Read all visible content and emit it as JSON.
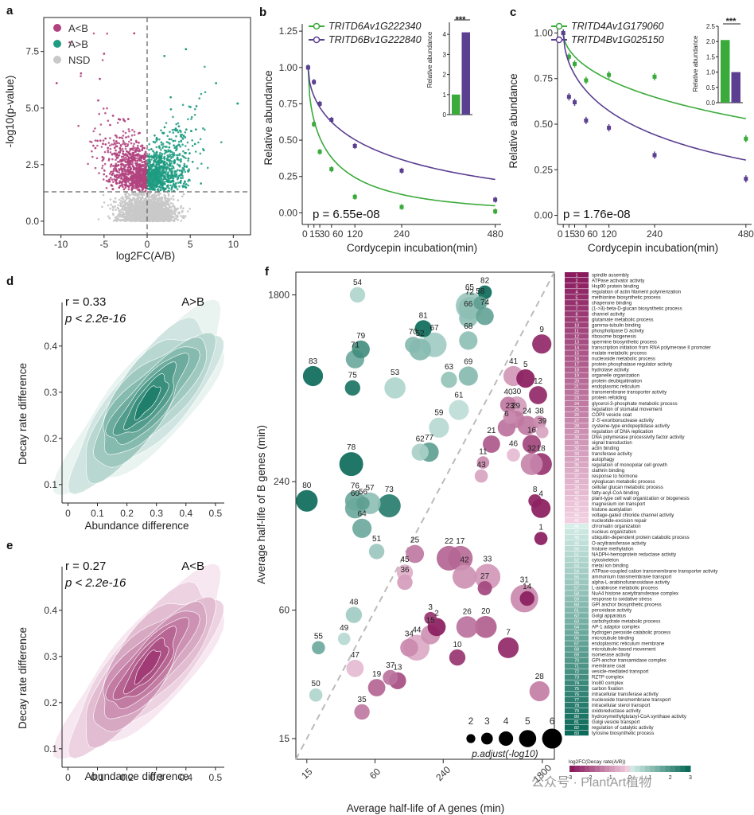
{
  "panels": {
    "a": "a",
    "b": "b",
    "c": "c",
    "d": "d",
    "e": "e",
    "f": "f"
  },
  "colors": {
    "magenta": "#b2437f",
    "teal": "#1f9c82",
    "grey": "#c9c9c9",
    "green": "#3aaa3a",
    "purple": "#5b3f91"
  },
  "watermark": "公众号 · PlantArt植物",
  "chart_data": [
    {
      "panel": "a",
      "type": "scatter",
      "xlabel": "log2FC(A/B)",
      "ylabel": "-log10(p-value)",
      "xlim": [
        -12,
        12
      ],
      "ylim": [
        -0.6,
        9
      ],
      "xticks": [
        "-10",
        "-5",
        "0",
        "5",
        "10"
      ],
      "yticks": [
        "0.0",
        "2.5",
        "5.0",
        "7.5"
      ],
      "legend": [
        "A<B",
        "A>B",
        "NSD"
      ],
      "threshold_y": 1.3,
      "threshold_x": 0
    },
    {
      "panel": "b",
      "type": "line",
      "xlabel": "Cordycepin incubation(min)",
      "ylabel": "Relative abundance",
      "xticks": [
        "0",
        "15",
        "30",
        "60",
        "120",
        "240",
        "480"
      ],
      "yticks": [
        "0.00",
        "0.25",
        "0.50",
        "0.75",
        "1.00",
        "1.25"
      ],
      "p_value": "p = 6.55e-08",
      "series": [
        {
          "name": "TRITD6Av1G222340",
          "x": [
            0,
            15,
            30,
            60,
            120,
            240,
            480
          ],
          "y": [
            1.0,
            0.61,
            0.42,
            0.3,
            0.11,
            0.04,
            0.01
          ]
        },
        {
          "name": "TRITD6Bv1G222840",
          "x": [
            0,
            15,
            30,
            60,
            120,
            240,
            480
          ],
          "y": [
            1.0,
            0.9,
            0.75,
            0.64,
            0.46,
            0.29,
            0.09
          ]
        }
      ],
      "inset": {
        "ylabel": "Relative abundance",
        "values": [
          1.0,
          4.1
        ],
        "yticks": [
          "0",
          "1",
          "2",
          "3",
          "4"
        ],
        "sig": "***"
      }
    },
    {
      "panel": "c",
      "type": "line",
      "xlabel": "Cordycepin incubation(min)",
      "ylabel": "Relative abundance",
      "xticks": [
        "0",
        "15",
        "30",
        "60",
        "120",
        "240",
        "480"
      ],
      "yticks": [
        "0.00",
        "0.25",
        "0.50",
        "0.75",
        "1.00"
      ],
      "p_value": "p = 1.76e-08",
      "series": [
        {
          "name": "TRITD4Av1G179060",
          "x": [
            0,
            15,
            30,
            60,
            120,
            240,
            480
          ],
          "y": [
            1.0,
            0.87,
            0.83,
            0.74,
            0.77,
            0.76,
            0.42
          ]
        },
        {
          "name": "TRITD4Bv1G025150",
          "x": [
            0,
            15,
            30,
            60,
            120,
            240,
            480
          ],
          "y": [
            1.0,
            0.65,
            0.62,
            0.52,
            0.48,
            0.33,
            0.2
          ]
        }
      ],
      "inset": {
        "ylabel": "Relative abundance",
        "values": [
          2.05,
          1.0
        ],
        "yticks": [
          "0.0",
          "0.5",
          "1.0",
          "1.5",
          "2.0",
          "2.5"
        ],
        "sig": "***"
      }
    },
    {
      "panel": "d",
      "type": "heatmap",
      "title": "A>B",
      "stat_r": "r = 0.33",
      "stat_p": "p < 2.2e-16",
      "xlabel": "Abundance difference",
      "ylabel": "Decay rate difference",
      "xticks": [
        "0",
        "0.1",
        "0.2",
        "0.3",
        "0.4",
        "0.5"
      ],
      "yticks": [
        "0.1",
        "0.2",
        "0.3",
        "0.4"
      ],
      "peak": [
        0.27,
        0.28
      ]
    },
    {
      "panel": "e",
      "type": "heatmap",
      "title": "A<B",
      "stat_r": "r = 0.27",
      "stat_p": "p < 2.2e-16",
      "xlabel": "Abundance difference",
      "ylabel": "Decay rate difference",
      "xticks": [
        "0",
        "0.1",
        "0.2",
        "0.3",
        "0.4",
        "0.5"
      ],
      "yticks": [
        "0.1",
        "0.2",
        "0.3",
        "0.4"
      ],
      "peak": [
        0.27,
        0.28
      ]
    },
    {
      "panel": "f",
      "type": "scatter",
      "xlabel": "Average half-life of A genes (min)",
      "ylabel": "Average half-life of B genes (min)",
      "xticks": [
        "15",
        "60",
        "240",
        "1800"
      ],
      "yticks": [
        "15",
        "60",
        "240",
        "1800"
      ],
      "size_legend_title": "p.adjust(-log10)",
      "size_legend": [
        "2",
        "3",
        "4",
        "5",
        "6"
      ],
      "colorbar_title": "log2FC(Decay rate(A/B))",
      "colorbar_ticks": [
        "-3",
        "-2",
        "-1",
        "0",
        "1",
        "2",
        "3"
      ],
      "terms": [
        "spindle assembly",
        "ATPase activator activity",
        "Hsp90 protein binding",
        "regulation of actin filament polymerization",
        "methionine biosynthetic process",
        "chaperone binding",
        "(1->3)-beta-D-glucan biosynthetic process",
        "channel activity",
        "glutamate metabolic process",
        "gamma-tubulin binding",
        "phospholipase D activity",
        "ribosome biogenesis",
        "spermine biosynthetic process",
        "transcription initiation from RNA polymerase II promoter",
        "malate metabolic process",
        "nucleoside metabolic process",
        "protein phosphatase regulator activity",
        "hydrolase activity",
        "organelle organization",
        "protein deubiquitination",
        "endoplasmic reticulum",
        "transmembrane transporter activity",
        "protein refolding",
        "glycerol-3-phosphate metabolic process",
        "regulation of stomatal movement",
        "COPII vesicle coat",
        "3'-5'-exoribonuclease activity",
        "cysteine-type endopeptidase activity",
        "regulation of DNA replication",
        "DNA polymerase processivity factor activity",
        "signal transduction",
        "actin binding",
        "transferase activity",
        "autophagy",
        "regulation of monopolar cell growth",
        "clathrin binding",
        "response to hormone",
        "xyloglucan metabolic process",
        "cellular glucan metabolic process",
        "fatty-acyl-CoA binding",
        "plant-type cell wall organization or biogenesis",
        "magnesium ion transport",
        "histone acetylation",
        "voltage-gated chloride channel activity",
        "nucleotide-excision repair",
        "chromatin organization",
        "nucleus organization",
        "ubiquitin-dependent protein catabolic process",
        "O-acyltransferase activity",
        "histone methylation",
        "NADPH-hemoprotein reductase activity",
        "cytoskeleton",
        "metal ion binding",
        "ATPase-coupled cation transmembrane transporter activity",
        "ammonium transmembrane transport",
        "alpha-L-arabinofuranosidase activity",
        "L-arabinose metabolic process",
        "NuA4 histone acetyltransferase complex",
        "response to oxidative stress",
        "GPI anchor biosynthetic process",
        "peroxidase activity",
        "Golgi apparatus",
        "carbohydrate metabolic process",
        "AP-1 adaptor complex",
        "hydrogen peroxide catabolic process",
        "microtubule binding",
        "endoplasmic reticulum membrane",
        "microtubule-based movement",
        "isomerase activity",
        "GPI-anchor transamidase complex",
        "membrane coat",
        "vesicle-mediated transport",
        "RZTP complex",
        "Ino80 complex",
        "carbon fixation",
        "intracellular transferase activity",
        "nucleoside transmembrane transport",
        "intracellular sterol transport",
        "oxidoreductase activity",
        "hydroxymethylglutaryl-CoA synthase activity",
        "Golgi vesicle transport",
        "regulation of catalytic activity",
        "tyrosine biosynthetic process"
      ],
      "points": [
        {
          "id": 1,
          "x": 1750,
          "y": 130,
          "s": 2.2,
          "c": -3.0
        },
        {
          "id": 2,
          "x": 210,
          "y": 50,
          "s": 3.5,
          "c": -3.0
        },
        {
          "id": 3,
          "x": 185,
          "y": 55,
          "s": 2.0,
          "c": -2.6
        },
        {
          "id": 4,
          "x": 1750,
          "y": 180,
          "s": 3.8,
          "c": -3.0
        },
        {
          "id": 5,
          "x": 1280,
          "y": 730,
          "s": 3.6,
          "c": -3.0
        },
        {
          "id": 6,
          "x": 870,
          "y": 430,
          "s": 3.4,
          "c": -1.6
        },
        {
          "id": 7,
          "x": 900,
          "y": 40,
          "s": 4.2,
          "c": -2.8
        },
        {
          "id": 8,
          "x": 1550,
          "y": 195,
          "s": 2.2,
          "c": -2.9
        },
        {
          "id": 9,
          "x": 1780,
          "y": 1060,
          "s": 3.8,
          "c": -2.8
        },
        {
          "id": 10,
          "x": 320,
          "y": 36,
          "s": 3.0,
          "c": -2.6
        },
        {
          "id": 11,
          "x": 540,
          "y": 295,
          "s": 2.0,
          "c": -1.2
        },
        {
          "id": 12,
          "x": 1650,
          "y": 610,
          "s": 3.5,
          "c": -2.8
        },
        {
          "id": 13,
          "x": 95,
          "y": 28,
          "s": 3.2,
          "c": -2.2
        },
        {
          "id": 14,
          "x": 1320,
          "y": 68,
          "s": 2.6,
          "c": -3.0
        },
        {
          "id": 15,
          "x": 185,
          "y": 46,
          "s": 3.8,
          "c": -1.1
        },
        {
          "id": 16,
          "x": 1450,
          "y": 360,
          "s": 3.6,
          "c": -2.3
        },
        {
          "id": 17,
          "x": 340,
          "y": 105,
          "s": 5.2,
          "c": -1.7
        },
        {
          "id": 18,
          "x": 1750,
          "y": 290,
          "s": 4.5,
          "c": -2.6
        },
        {
          "id": 19,
          "x": 62,
          "y": 26,
          "s": 3.3,
          "c": -1.8
        },
        {
          "id": 20,
          "x": 570,
          "y": 50,
          "s": 4.5,
          "c": -1.9
        },
        {
          "id": 21,
          "x": 640,
          "y": 360,
          "s": 3.3,
          "c": -2.0
        },
        {
          "id": 22,
          "x": 270,
          "y": 105,
          "s": 5.2,
          "c": -1.8
        },
        {
          "id": 23,
          "x": 930,
          "y": 480,
          "s": 2.2,
          "c": -1.2
        },
        {
          "id": 24,
          "x": 1320,
          "y": 440,
          "s": 3.8,
          "c": -1.5
        },
        {
          "id": 25,
          "x": 135,
          "y": 110,
          "s": 3.5,
          "c": -1.5
        },
        {
          "id": 26,
          "x": 390,
          "y": 50,
          "s": 4.4,
          "c": -1.6
        },
        {
          "id": 27,
          "x": 560,
          "y": 76,
          "s": 2.5,
          "c": -2.3
        },
        {
          "id": 28,
          "x": 1700,
          "y": 25,
          "s": 4.0,
          "c": -1.4
        },
        {
          "id": 29,
          "x": 1050,
          "y": 470,
          "s": 3.3,
          "c": -1.5
        },
        {
          "id": 30,
          "x": 1070,
          "y": 540,
          "s": 4.0,
          "c": -0.9
        },
        {
          "id": 31,
          "x": 1250,
          "y": 68,
          "s": 6.0,
          "c": -1.2
        },
        {
          "id": 32,
          "x": 1450,
          "y": 290,
          "s": 4.5,
          "c": -1.3
        },
        {
          "id": 33,
          "x": 590,
          "y": 86,
          "s": 5.5,
          "c": -1.0
        },
        {
          "id": 34,
          "x": 120,
          "y": 40,
          "s": 3.4,
          "c": -1.2
        },
        {
          "id": 35,
          "x": 46,
          "y": 20,
          "s": 2.8,
          "c": -1.5
        },
        {
          "id": 36,
          "x": 110,
          "y": 81,
          "s": 2.8,
          "c": -0.9
        },
        {
          "id": 37,
          "x": 82,
          "y": 29,
          "s": 2.7,
          "c": -1.6
        },
        {
          "id": 38,
          "x": 1700,
          "y": 455,
          "s": 2.2,
          "c": -1.2
        },
        {
          "id": 39,
          "x": 1800,
          "y": 410,
          "s": 2.0,
          "c": -0.8
        },
        {
          "id": 40,
          "x": 900,
          "y": 550,
          "s": 3.0,
          "c": -1.5
        },
        {
          "id": 41,
          "x": 1000,
          "y": 750,
          "s": 4.0,
          "c": -1.0
        },
        {
          "id": 42,
          "x": 370,
          "y": 86,
          "s": 5.0,
          "c": -1.1
        },
        {
          "id": 43,
          "x": 520,
          "y": 255,
          "s": 2.2,
          "c": -0.8
        },
        {
          "id": 44,
          "x": 140,
          "y": 40,
          "s": 5.5,
          "c": -0.7
        },
        {
          "id": 45,
          "x": 110,
          "y": 90,
          "s": 3.0,
          "c": -0.6
        },
        {
          "id": 46,
          "x": 1000,
          "y": 320,
          "s": 2.2,
          "c": -0.4
        },
        {
          "id": 47,
          "x": 40,
          "y": 32,
          "s": 3.3,
          "c": -0.4
        },
        {
          "id": 48,
          "x": 39,
          "y": 57,
          "s": 3.0,
          "c": 0.8
        },
        {
          "id": 49,
          "x": 32,
          "y": 44,
          "s": 2.0,
          "c": 0.5
        },
        {
          "id": 50,
          "x": 18,
          "y": 24,
          "s": 2.2,
          "c": 0.6
        },
        {
          "id": 51,
          "x": 62,
          "y": 113,
          "s": 2.8,
          "c": 0.9
        },
        {
          "id": 52,
          "x": 150,
          "y": 1000,
          "s": 4.5,
          "c": 1.2
        },
        {
          "id": 53,
          "x": 90,
          "y": 660,
          "s": 4.3,
          "c": 0.6
        },
        {
          "id": 54,
          "x": 42,
          "y": 1800,
          "s": 2.8,
          "c": 0.6
        },
        {
          "id": 55,
          "x": 19,
          "y": 40,
          "s": 2.2,
          "c": 1.6
        },
        {
          "id": 56,
          "x": 47,
          "y": 190,
          "s": 2.2,
          "c": 1.8
        },
        {
          "id": 57,
          "x": 54,
          "y": 190,
          "s": 4.4,
          "c": 1.1
        },
        {
          "id": 58,
          "x": 510,
          "y": 1650,
          "s": 2.3,
          "c": 1.8
        },
        {
          "id": 59,
          "x": 220,
          "y": 430,
          "s": 4.0,
          "c": 0.5
        },
        {
          "id": 60,
          "x": 40,
          "y": 180,
          "s": 4.0,
          "c": 1.6
        },
        {
          "id": 61,
          "x": 330,
          "y": 520,
          "s": 4.0,
          "c": 0.4
        },
        {
          "id": 62,
          "x": 150,
          "y": 330,
          "s": 3.2,
          "c": 0.7
        },
        {
          "id": 63,
          "x": 270,
          "y": 720,
          "s": 3.0,
          "c": 1.0
        },
        {
          "id": 64,
          "x": 46,
          "y": 145,
          "s": 3.8,
          "c": 1.6
        },
        {
          "id": 65,
          "x": 410,
          "y": 1600,
          "s": 6.0,
          "c": 0.9
        },
        {
          "id": 66,
          "x": 400,
          "y": 1400,
          "s": 3.6,
          "c": 1.1
        },
        {
          "id": 67,
          "x": 200,
          "y": 1050,
          "s": 5.2,
          "c": 0.8
        },
        {
          "id": 68,
          "x": 400,
          "y": 1100,
          "s": 3.6,
          "c": 1.1
        },
        {
          "id": 69,
          "x": 400,
          "y": 750,
          "s": 3.8,
          "c": 1.2
        },
        {
          "id": 70,
          "x": 130,
          "y": 1050,
          "s": 3.0,
          "c": 1.2
        },
        {
          "id": 71,
          "x": 40,
          "y": 900,
          "s": 3.6,
          "c": 1.6
        },
        {
          "id": 72,
          "x": 410,
          "y": 1560,
          "s": 4.6,
          "c": 1.1
        },
        {
          "id": 73,
          "x": 80,
          "y": 185,
          "s": 4.8,
          "c": 2.6
        },
        {
          "id": 74,
          "x": 560,
          "y": 1430,
          "s": 3.4,
          "c": 1.7
        },
        {
          "id": 75,
          "x": 38,
          "y": 660,
          "s": 2.8,
          "c": 2.8
        },
        {
          "id": 76,
          "x": 40,
          "y": 195,
          "s": 4.0,
          "c": 1.6
        },
        {
          "id": 77,
          "x": 180,
          "y": 330,
          "s": 3.8,
          "c": 1.8
        },
        {
          "id": 78,
          "x": 37,
          "y": 290,
          "s": 5.0,
          "c": 3.0
        },
        {
          "id": 79,
          "x": 45,
          "y": 1000,
          "s": 3.4,
          "c": 2.2
        },
        {
          "id": 80,
          "x": 15,
          "y": 195,
          "s": 4.4,
          "c": 3.0
        },
        {
          "id": 81,
          "x": 160,
          "y": 1250,
          "s": 3.2,
          "c": 3.0
        },
        {
          "id": 82,
          "x": 560,
          "y": 1850,
          "s": 2.4,
          "c": 3.0
        },
        {
          "id": 83,
          "x": 17,
          "y": 750,
          "s": 4.0,
          "c": 3.0
        }
      ]
    }
  ]
}
